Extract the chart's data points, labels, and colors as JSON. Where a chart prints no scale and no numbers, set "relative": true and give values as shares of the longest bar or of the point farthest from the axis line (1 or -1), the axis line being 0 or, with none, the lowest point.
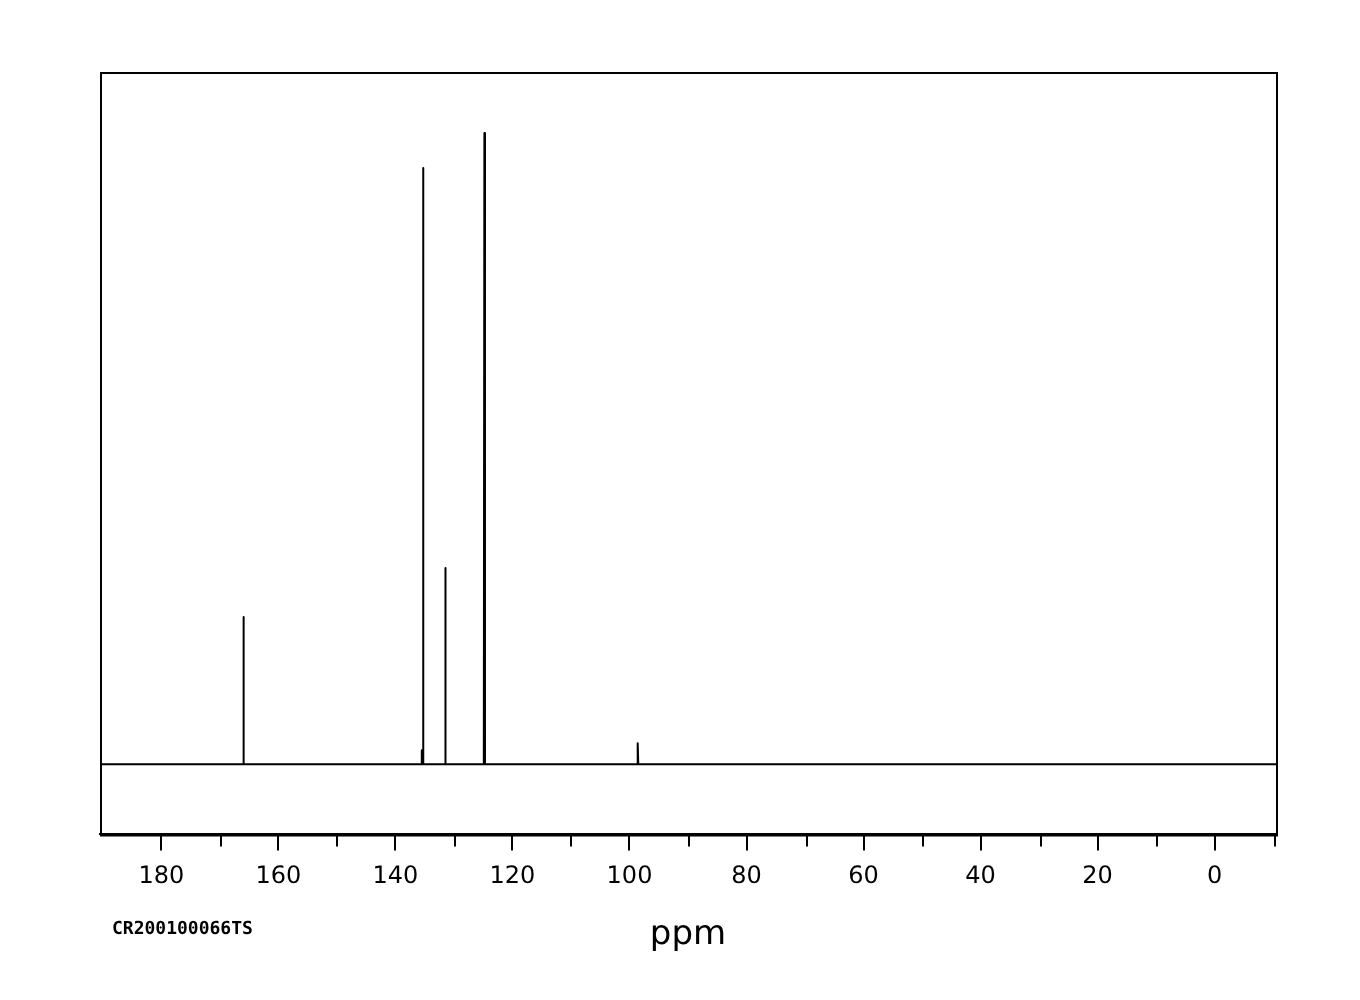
{
  "chart_data": {
    "type": "line",
    "relative": true,
    "xlabel": "ppm",
    "annotations": [
      "CR200100066TS"
    ],
    "xlim": [
      190.5,
      -10.5
    ],
    "xticks": [
      180,
      {
        "value": 170,
        "label": null
      },
      160,
      {
        "value": 150,
        "label": null
      },
      140,
      {
        "value": 130,
        "label": null
      },
      120,
      {
        "value": 110,
        "label": null
      },
      100,
      {
        "value": 90,
        "label": null
      },
      80,
      {
        "value": 70,
        "label": null
      },
      60,
      {
        "value": 50,
        "label": null
      },
      40,
      {
        "value": 30,
        "label": null
      },
      20,
      {
        "value": 10,
        "label": null
      },
      0,
      {
        "value": -10,
        "label": null
      }
    ],
    "grid": false,
    "legend": false,
    "marker": "none",
    "line_style": "solid",
    "x": [
      190.5,
      166.1,
      166.0,
      165.9,
      135.6,
      135.5,
      135.4,
      135.3,
      135.2,
      131.6,
      131.5,
      131.4,
      124.9,
      124.8,
      124.7,
      98.7,
      98.6,
      98.5,
      -10.5
    ],
    "series": [
      {
        "color": "#000000",
        "values": [
          0.1,
          0.1,
          0.31,
          0.1,
          0.1,
          0.12,
          0.1,
          0.95,
          0.1,
          0.1,
          0.38,
          0.1,
          0.1,
          1,
          0.1,
          0.1,
          0.13,
          0.1,
          0.1
        ]
      }
    ]
  }
}
